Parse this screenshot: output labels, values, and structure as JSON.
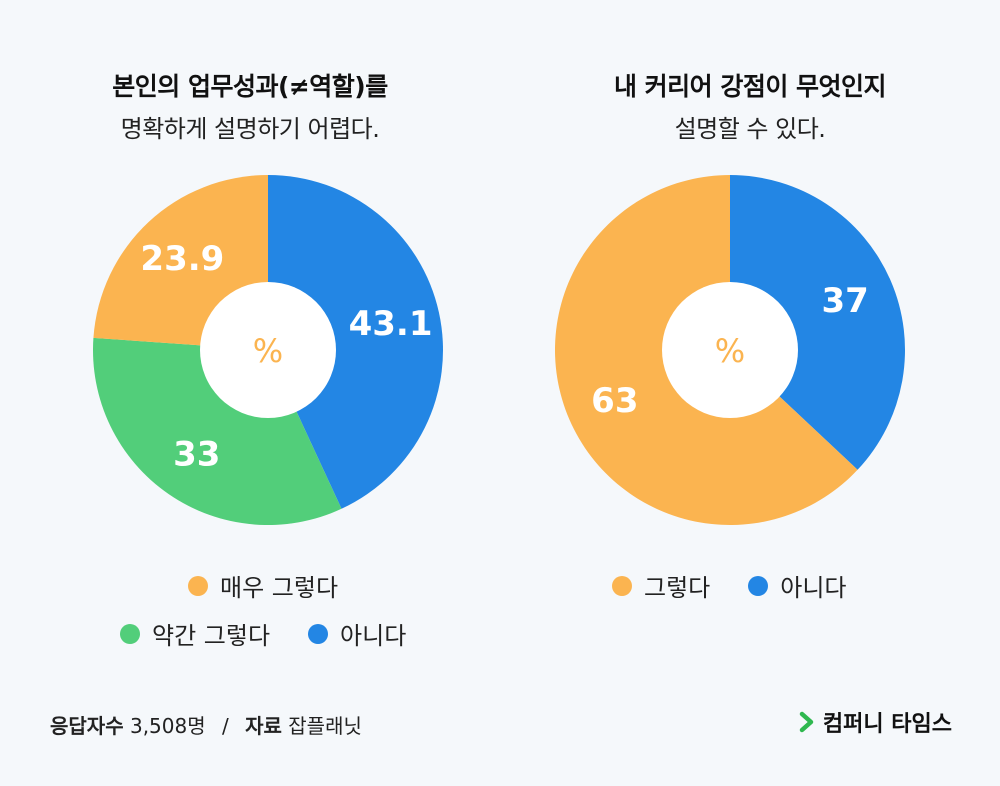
{
  "chart_data": [
    {
      "type": "pie",
      "title": "본인의 업무성과(≠역할)를",
      "subtitle": "명확하게 설명하기 어렵다.",
      "center_label": "%",
      "categories": [
        "아니다",
        "약간 그렇다",
        "매우 그렇다"
      ],
      "values": [
        43.1,
        33,
        23.9
      ],
      "value_labels": [
        "43.1",
        "33",
        "23.9"
      ],
      "colors": [
        "#2386e4",
        "#52ce7a",
        "#fbb450"
      ],
      "legend": [
        {
          "label": "매우 그렇다",
          "color": "#fbb450"
        },
        {
          "label": "약간 그렇다",
          "color": "#52ce7a"
        },
        {
          "label": "아니다",
          "color": "#2386e4"
        }
      ],
      "legend_position": "bottom"
    },
    {
      "type": "pie",
      "title": "내 커리어 강점이 무엇인지",
      "subtitle": "설명할 수 있다.",
      "center_label": "%",
      "categories": [
        "아니다",
        "그렇다"
      ],
      "values": [
        37,
        63
      ],
      "value_labels": [
        "37",
        "63"
      ],
      "colors": [
        "#2386e4",
        "#fbb450"
      ],
      "legend": [
        {
          "label": "그렇다",
          "color": "#fbb450"
        },
        {
          "label": "아니다",
          "color": "#2386e4"
        }
      ],
      "legend_position": "bottom"
    }
  ],
  "footer": {
    "respondents_label": "응답자수",
    "respondents_value": "3,508명",
    "separator": "/",
    "source_label": "자료",
    "source_value": "잡플래닛",
    "brand": "컴퍼니 타임스",
    "brand_color": "#2fb84f"
  }
}
